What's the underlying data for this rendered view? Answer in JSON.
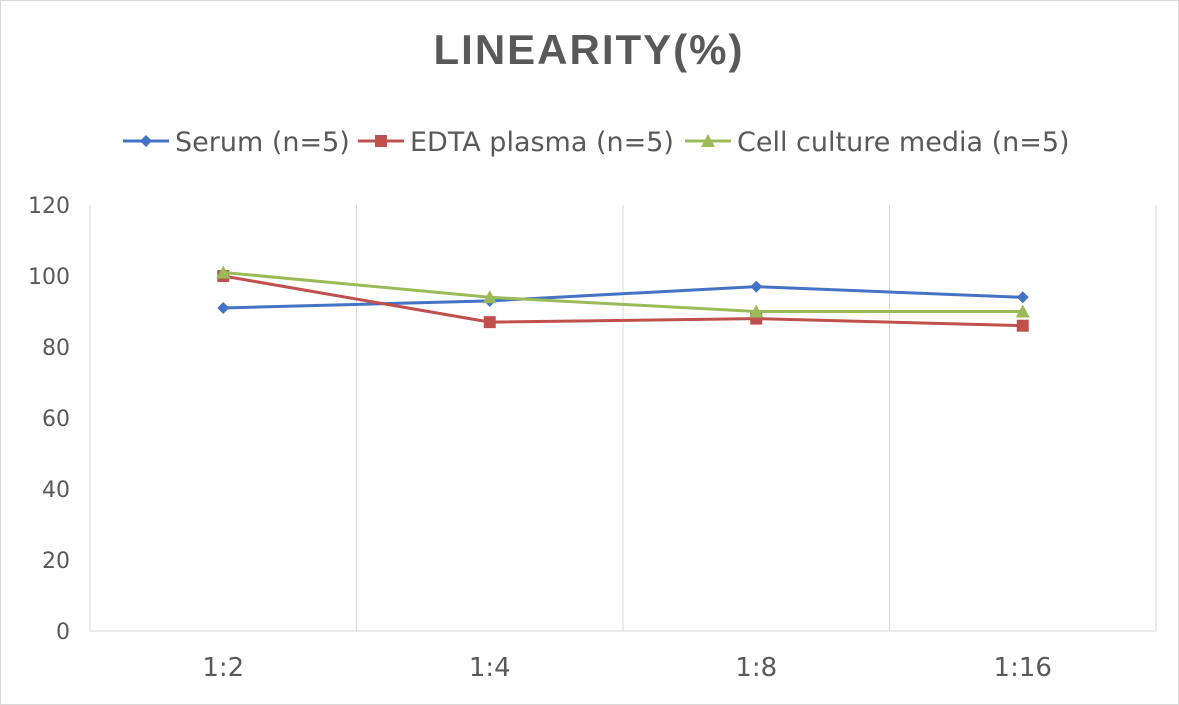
{
  "chart_data": {
    "type": "line",
    "title": "LINEARITY(%)",
    "xlabel": "",
    "ylabel": "",
    "categories": [
      "1:2",
      "1:4",
      "1:8",
      "1:16"
    ],
    "ylim": [
      0,
      120
    ],
    "yticks": [
      0,
      20,
      40,
      60,
      80,
      100,
      120
    ],
    "grid": "vertical",
    "legend_position": "top",
    "series": [
      {
        "name": "Serum (n=5)",
        "values": [
          91,
          93,
          97,
          94
        ],
        "color": "#4472c4",
        "marker": "diamond"
      },
      {
        "name": "EDTA plasma (n=5)",
        "values": [
          100,
          87,
          88,
          86
        ],
        "color": "#c0504d",
        "marker": "square"
      },
      {
        "name": "Cell culture media (n=5)",
        "values": [
          101,
          94,
          90,
          90
        ],
        "color": "#9bbb59",
        "marker": "triangle"
      }
    ]
  }
}
